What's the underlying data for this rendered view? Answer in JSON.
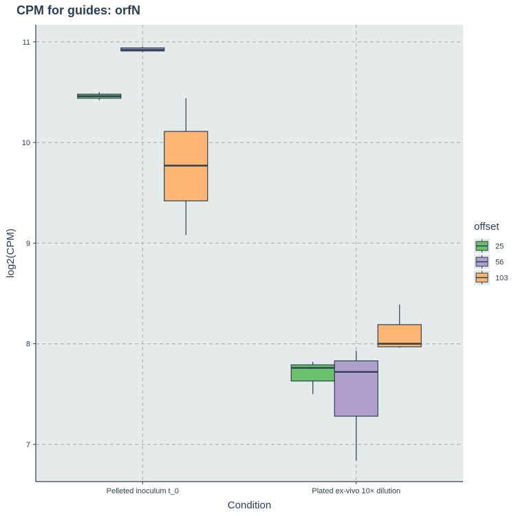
{
  "chart_data": {
    "type": "boxplot",
    "title": "CPM for guides: orfN",
    "xlabel": "Condition",
    "ylabel": "log2(CPM)",
    "ylim": [
      6.63,
      11.17
    ],
    "yticks": [
      7,
      8,
      9,
      10,
      11
    ],
    "grid": true,
    "legend": {
      "title": "offset",
      "position": "right"
    },
    "categories": [
      "Pelleted inoculum t_0",
      "Plated ex-vivo 10× dilution"
    ],
    "series": [
      {
        "name": "25",
        "color": "#6cbf6c",
        "boxes": [
          {
            "category": "Pelleted inoculum t_0",
            "min": 10.42,
            "q1": 10.44,
            "median": 10.46,
            "q3": 10.48,
            "max": 10.5
          },
          {
            "category": "Plated ex-vivo 10× dilution",
            "min": 7.5,
            "q1": 7.63,
            "median": 7.76,
            "q3": 7.79,
            "max": 7.82
          }
        ]
      },
      {
        "name": "56",
        "color": "#b09fcc",
        "boxes": [
          {
            "category": "Pelleted inoculum t_0",
            "min": 10.9,
            "q1": 10.91,
            "median": 10.92,
            "q3": 10.94,
            "max": 10.95
          },
          {
            "category": "Plated ex-vivo 10× dilution",
            "min": 6.84,
            "q1": 7.28,
            "median": 7.72,
            "q3": 7.83,
            "max": 7.93
          }
        ]
      },
      {
        "name": "103",
        "color": "#fdb574",
        "boxes": [
          {
            "category": "Pelleted inoculum t_0",
            "min": 9.08,
            "q1": 9.42,
            "median": 9.77,
            "q3": 10.11,
            "max": 10.44
          },
          {
            "category": "Plated ex-vivo 10× dilution",
            "min": 7.96,
            "q1": 7.97,
            "median": 8.0,
            "q3": 8.19,
            "max": 8.39
          }
        ]
      }
    ]
  },
  "colors": {
    "panel_background": "#e5ebeb",
    "grid_line": "#b0b7b7",
    "axis_line": "#2c3e50",
    "text": "#2c3e50"
  }
}
